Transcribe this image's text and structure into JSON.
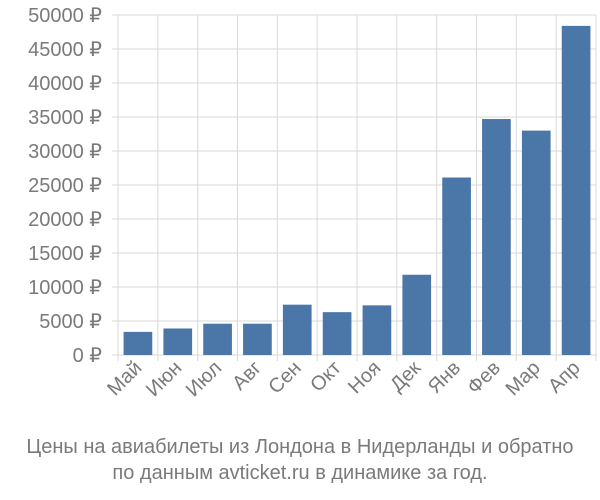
{
  "chart_data": {
    "type": "bar",
    "categories": [
      "Май",
      "Июн",
      "Июл",
      "Авг",
      "Сен",
      "Окт",
      "Ноя",
      "Дек",
      "Янв",
      "Фев",
      "Мар",
      "Апр"
    ],
    "values": [
      3400,
      3900,
      4600,
      4600,
      7400,
      6300,
      7300,
      11800,
      26100,
      34700,
      33000,
      48400
    ],
    "ylim": [
      0,
      50000
    ],
    "yticks": [
      0,
      5000,
      10000,
      15000,
      20000,
      25000,
      30000,
      35000,
      40000,
      45000,
      50000
    ],
    "currency_suffix": " ₽",
    "grid": true,
    "bar_color": "#4a76a8"
  },
  "caption": {
    "line1": "Цены на авиабилеты из Лондона в Нидерланды и обратно",
    "line2": "по данным avticket.ru в динамике за год."
  }
}
